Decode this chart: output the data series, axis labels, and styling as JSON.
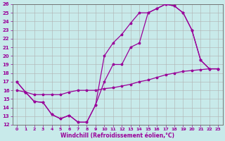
{
  "xlabel": "Windchill (Refroidissement éolien,°C)",
  "bg_color": "#c8eaea",
  "line_color": "#990099",
  "grid_color": "#b0b0b0",
  "xlim": [
    -0.5,
    23.5
  ],
  "ylim": [
    12,
    26
  ],
  "xticks": [
    0,
    1,
    2,
    3,
    4,
    5,
    6,
    7,
    8,
    9,
    10,
    11,
    12,
    13,
    14,
    15,
    16,
    17,
    18,
    19,
    20,
    21,
    22,
    23
  ],
  "yticks": [
    12,
    13,
    14,
    15,
    16,
    17,
    18,
    19,
    20,
    21,
    22,
    23,
    24,
    25,
    26
  ],
  "line1_lower": {
    "x": [
      0,
      1,
      2,
      3,
      4,
      5,
      6,
      7,
      8,
      9,
      10,
      11,
      12,
      13,
      14,
      15,
      16,
      17,
      18,
      19,
      20,
      21,
      22,
      23
    ],
    "y": [
      17.0,
      15.8,
      14.7,
      14.6,
      13.2,
      12.7,
      13.1,
      12.3,
      12.3,
      14.3,
      17.0,
      19.0,
      19.0,
      21.0,
      21.5,
      25.0,
      25.5,
      26.0,
      25.8,
      25.0,
      23.0,
      19.5,
      18.5,
      18.5
    ]
  },
  "line2_upper": {
    "x": [
      0,
      1,
      2,
      3,
      4,
      5,
      6,
      7,
      8,
      9,
      10,
      11,
      12,
      13,
      14,
      15,
      16,
      17,
      18,
      19,
      20,
      21,
      22,
      23
    ],
    "y": [
      17.0,
      15.8,
      14.7,
      14.6,
      13.2,
      12.7,
      13.1,
      12.3,
      12.3,
      14.3,
      20.0,
      21.5,
      22.5,
      23.8,
      25.0,
      25.0,
      25.5,
      26.0,
      25.8,
      25.0,
      23.0,
      19.5,
      18.5,
      18.5
    ]
  },
  "line3_straight": {
    "x": [
      0,
      1,
      2,
      3,
      4,
      5,
      6,
      7,
      8,
      9,
      10,
      11,
      12,
      13,
      14,
      15,
      16,
      17,
      18,
      19,
      20,
      21,
      22,
      23
    ],
    "y": [
      16.0,
      15.8,
      15.5,
      15.5,
      15.5,
      15.5,
      15.8,
      16.0,
      16.0,
      16.0,
      16.2,
      16.3,
      16.5,
      16.7,
      17.0,
      17.2,
      17.5,
      17.8,
      18.0,
      18.2,
      18.3,
      18.4,
      18.5,
      18.5
    ]
  }
}
